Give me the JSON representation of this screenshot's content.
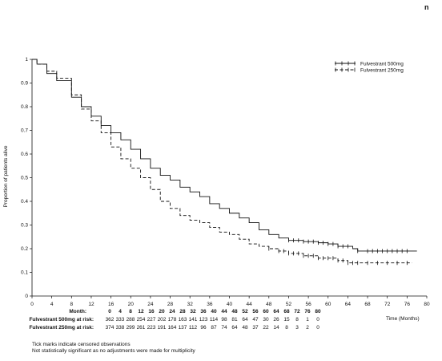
{
  "corner_label": "n",
  "footnotes": [
    "Tick marks indicate censored observations",
    "Not statistically significant as no adjustments were made for multiplicity"
  ],
  "chart_data": {
    "type": "line",
    "subtype": "kaplan-meier",
    "title": "",
    "ylabel": "Proportion of patients alive",
    "xlabel": "Time (Months)",
    "xlim": [
      0,
      80
    ],
    "ylim": [
      0,
      1
    ],
    "yticks": [
      "0",
      "0.1",
      "0.2",
      "0.3",
      "0.4",
      "0.5",
      "0.6",
      "0.7",
      "0.8",
      "0.9",
      "1"
    ],
    "xticks": [
      "0",
      "4",
      "8",
      "12",
      "16",
      "20",
      "24",
      "28",
      "32",
      "36",
      "40",
      "44",
      "48",
      "52",
      "56",
      "60",
      "64",
      "68",
      "72",
      "76",
      "80"
    ],
    "grid": false,
    "legend_position": "top-right",
    "series": [
      {
        "name": "Fulvestrant 500mg",
        "style": "solid",
        "color": "#111111",
        "points": [
          [
            0,
            1
          ],
          [
            1,
            0.98
          ],
          [
            3,
            0.94
          ],
          [
            5,
            0.91
          ],
          [
            8,
            0.84
          ],
          [
            10,
            0.8
          ],
          [
            12,
            0.76
          ],
          [
            14,
            0.72
          ],
          [
            16,
            0.69
          ],
          [
            18,
            0.66
          ],
          [
            20,
            0.62
          ],
          [
            22,
            0.58
          ],
          [
            24,
            0.54
          ],
          [
            26,
            0.51
          ],
          [
            28,
            0.49
          ],
          [
            30,
            0.46
          ],
          [
            32,
            0.44
          ],
          [
            34,
            0.42
          ],
          [
            36,
            0.39
          ],
          [
            38,
            0.37
          ],
          [
            40,
            0.35
          ],
          [
            42,
            0.33
          ],
          [
            44,
            0.31
          ],
          [
            46,
            0.28
          ],
          [
            48,
            0.26
          ],
          [
            50,
            0.245
          ],
          [
            52,
            0.235
          ],
          [
            55,
            0.23
          ],
          [
            58,
            0.225
          ],
          [
            60,
            0.22
          ],
          [
            62,
            0.21
          ],
          [
            65,
            0.2
          ],
          [
            66,
            0.19
          ],
          [
            68,
            0.19
          ],
          [
            72,
            0.19
          ],
          [
            76,
            0.19
          ],
          [
            78,
            0.19
          ]
        ],
        "censor_x": [
          52,
          53,
          54,
          55,
          56,
          57,
          58,
          59,
          60,
          61,
          62,
          63,
          64,
          66,
          68,
          69,
          70,
          71,
          72,
          73,
          74,
          75,
          76
        ]
      },
      {
        "name": "Fulvestrant 250mg",
        "style": "dashed",
        "color": "#111111",
        "points": [
          [
            0,
            1
          ],
          [
            1,
            0.98
          ],
          [
            3,
            0.95
          ],
          [
            5,
            0.92
          ],
          [
            8,
            0.85
          ],
          [
            10,
            0.79
          ],
          [
            12,
            0.74
          ],
          [
            14,
            0.69
          ],
          [
            16,
            0.63
          ],
          [
            18,
            0.58
          ],
          [
            20,
            0.54
          ],
          [
            22,
            0.5
          ],
          [
            24,
            0.45
          ],
          [
            26,
            0.4
          ],
          [
            28,
            0.37
          ],
          [
            30,
            0.34
          ],
          [
            32,
            0.32
          ],
          [
            34,
            0.31
          ],
          [
            36,
            0.29
          ],
          [
            38,
            0.27
          ],
          [
            40,
            0.26
          ],
          [
            42,
            0.24
          ],
          [
            44,
            0.22
          ],
          [
            46,
            0.21
          ],
          [
            48,
            0.2
          ],
          [
            50,
            0.19
          ],
          [
            52,
            0.18
          ],
          [
            55,
            0.17
          ],
          [
            58,
            0.16
          ],
          [
            60,
            0.16
          ],
          [
            62,
            0.15
          ],
          [
            64,
            0.14
          ],
          [
            66,
            0.14
          ],
          [
            70,
            0.14
          ],
          [
            74,
            0.14
          ],
          [
            77,
            0.14
          ]
        ],
        "censor_x": [
          48,
          50,
          51,
          52,
          53,
          54,
          55,
          56,
          57,
          58,
          59,
          60,
          61,
          62,
          63,
          64,
          65,
          66,
          68,
          70,
          72,
          74,
          76
        ]
      }
    ],
    "risk_table": {
      "header_label": "Month:",
      "months": [
        "0",
        "4",
        "8",
        "12",
        "16",
        "20",
        "24",
        "28",
        "32",
        "36",
        "40",
        "44",
        "48",
        "52",
        "56",
        "60",
        "64",
        "68",
        "72",
        "76",
        "80"
      ],
      "rows": [
        {
          "label": "Fulvestrant 500mg at risk:",
          "values": [
            "362",
            "333",
            "288",
            "254",
            "227",
            "202",
            "178",
            "163",
            "141",
            "123",
            "114",
            "98",
            "81",
            "64",
            "47",
            "30",
            "26",
            "15",
            "8",
            "1",
            "0"
          ]
        },
        {
          "label": "Fulvestrant 250mg at risk:",
          "values": [
            "374",
            "338",
            "299",
            "261",
            "223",
            "191",
            "164",
            "137",
            "112",
            "96",
            "87",
            "74",
            "64",
            "48",
            "37",
            "22",
            "14",
            "8",
            "3",
            "2",
            "0"
          ]
        }
      ]
    }
  }
}
